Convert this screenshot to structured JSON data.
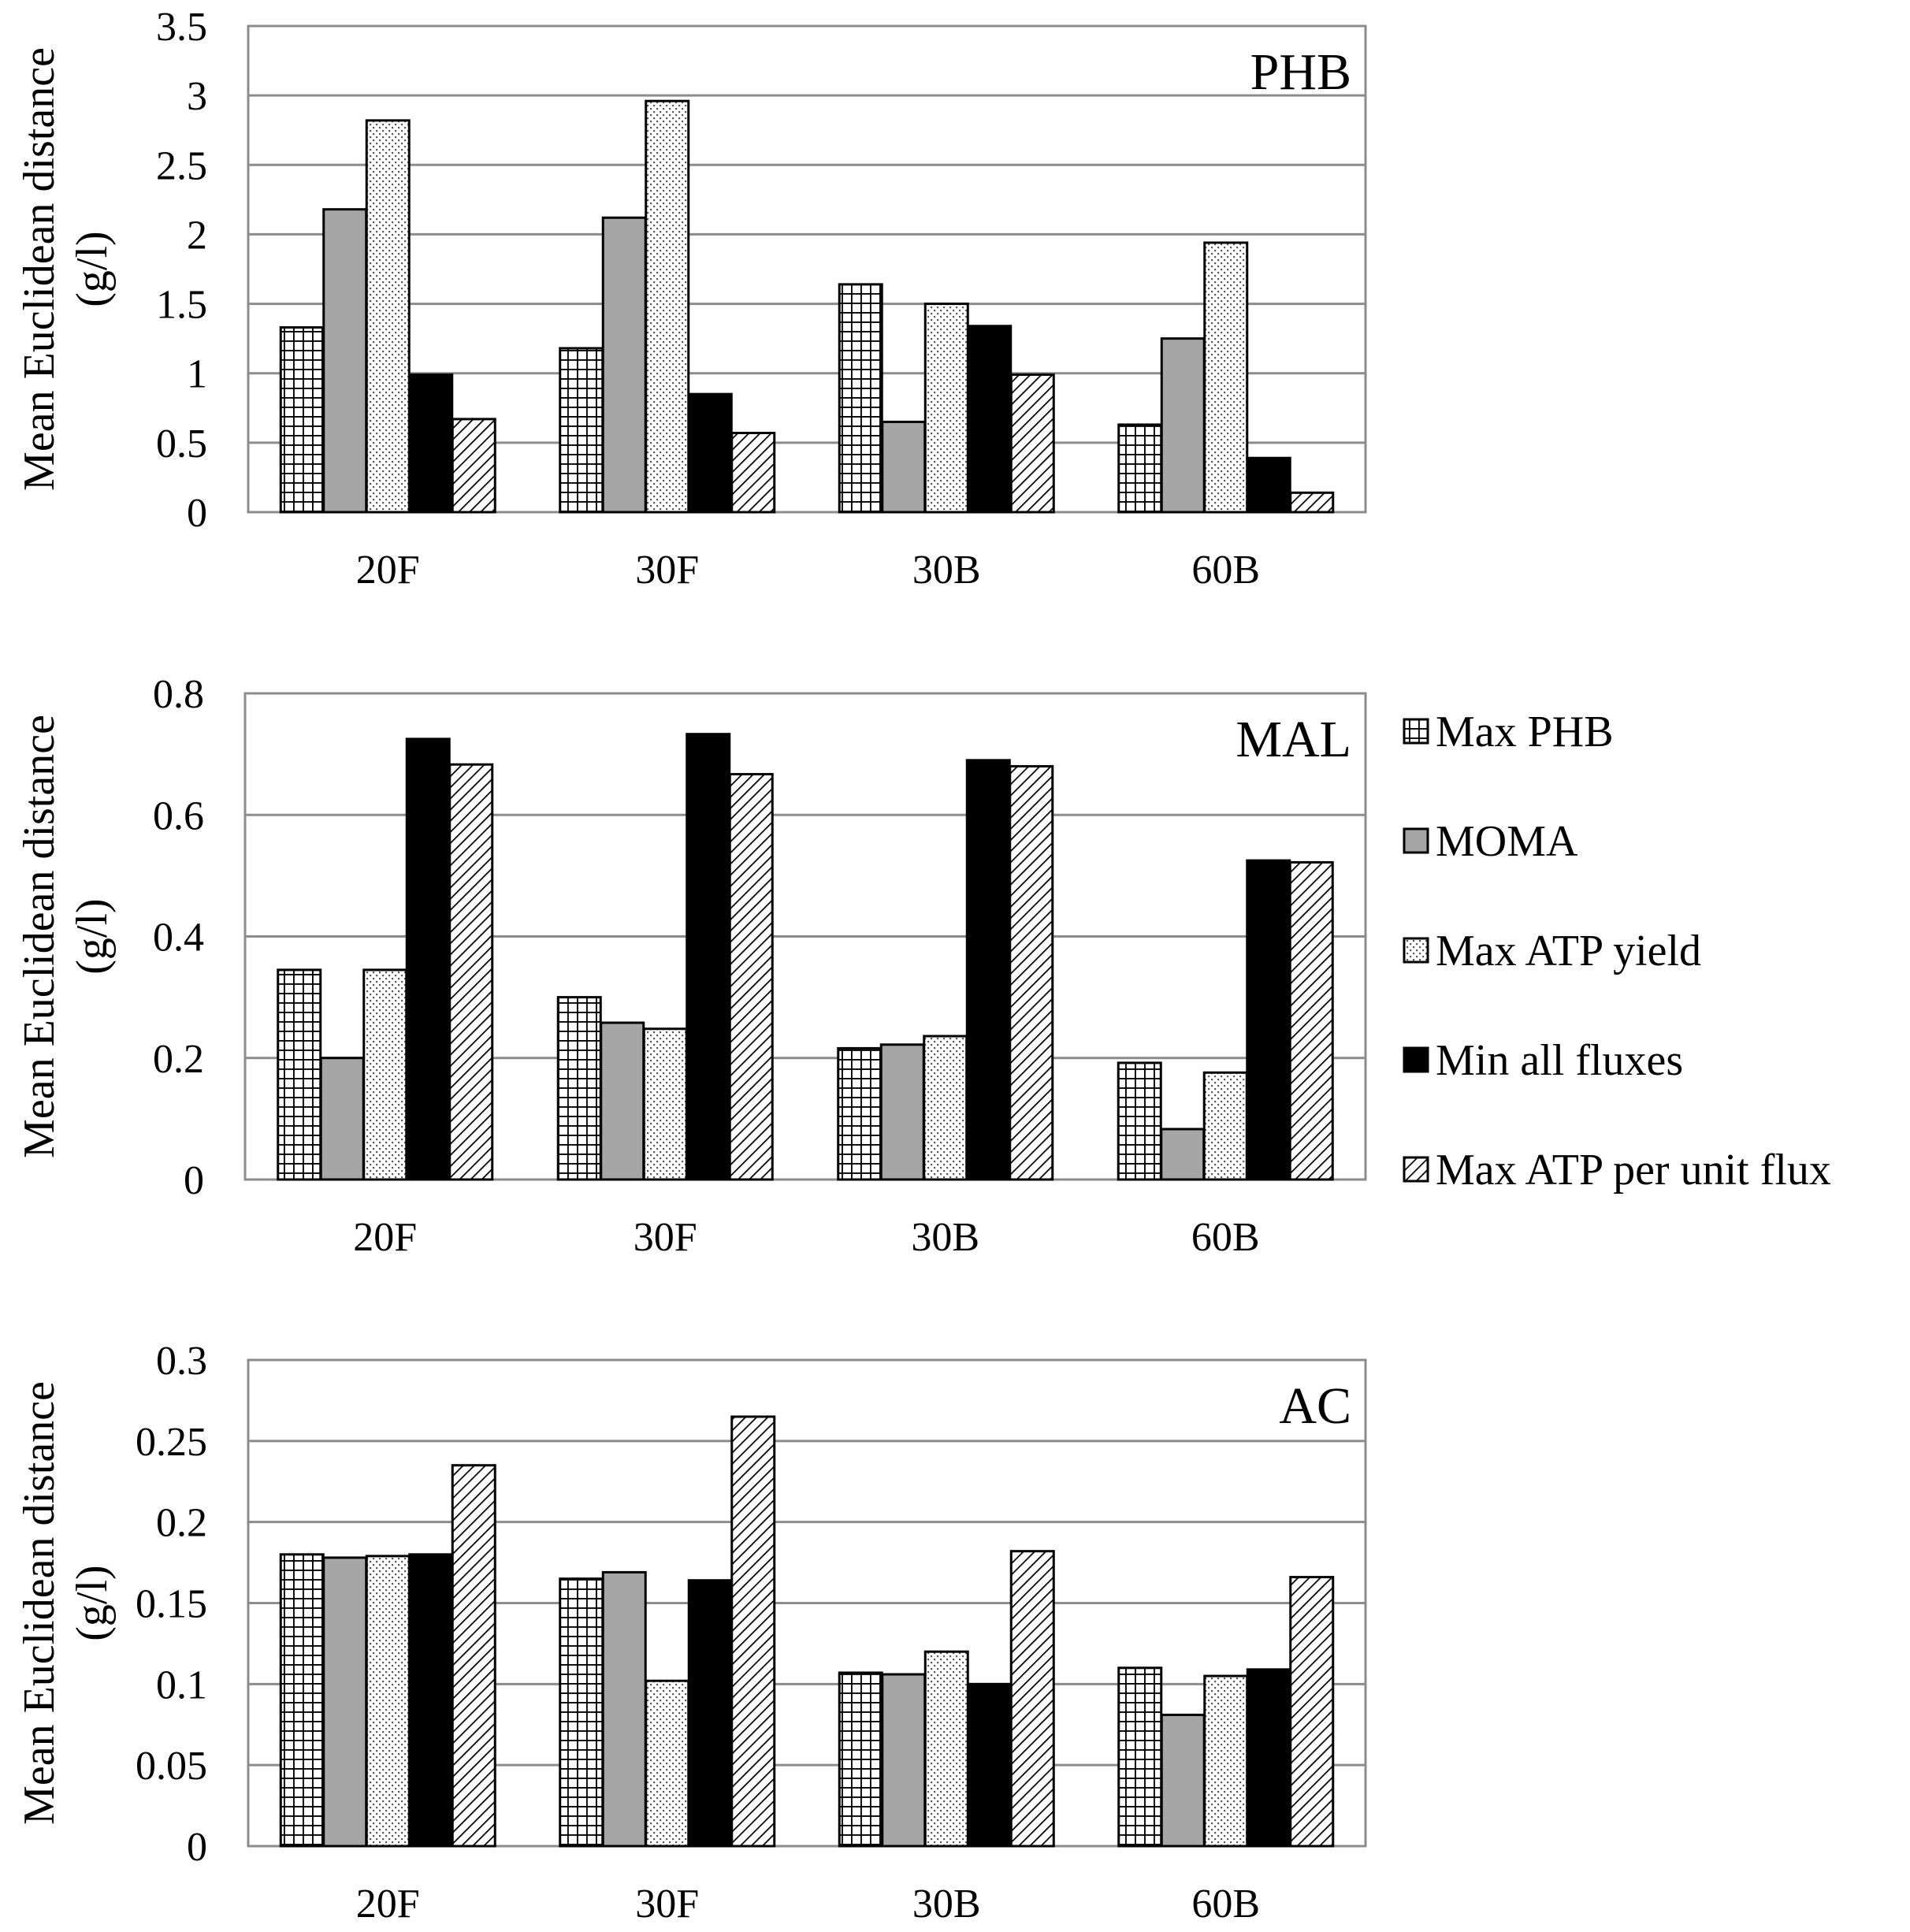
{
  "chart_data": [
    {
      "type": "bar",
      "panel_label": "PHB",
      "ylabel_line1": "Mean Euclidean distance",
      "ylabel_line2": "(g/l)",
      "categories": [
        "20F",
        "30F",
        "30B",
        "60B"
      ],
      "ylim": [
        0,
        3.5
      ],
      "yticks": [
        "0",
        "0.5",
        "1",
        "1.5",
        "2",
        "2.5",
        "3",
        "3.5"
      ],
      "grid": true,
      "series": [
        {
          "name": "Max PHB",
          "values": [
            1.33,
            1.18,
            1.64,
            0.63
          ]
        },
        {
          "name": "MOMA",
          "values": [
            2.18,
            2.12,
            0.65,
            1.25
          ]
        },
        {
          "name": "Max ATP yield",
          "values": [
            2.82,
            2.96,
            1.5,
            1.94
          ]
        },
        {
          "name": "Min all fluxes",
          "values": [
            0.99,
            0.85,
            1.34,
            0.39
          ]
        },
        {
          "name": "Max ATP per unit flux",
          "values": [
            0.67,
            0.57,
            0.99,
            0.14
          ]
        }
      ]
    },
    {
      "type": "bar",
      "panel_label": "MAL",
      "ylabel_line1": "Mean Euclidean distance",
      "ylabel_line2": "(g/l)",
      "categories": [
        "20F",
        "30F",
        "30B",
        "60B"
      ],
      "ylim": [
        0,
        0.8
      ],
      "yticks": [
        "0",
        "0.2",
        "0.4",
        "0.6",
        "0.8"
      ],
      "grid": true,
      "series": [
        {
          "name": "Max PHB",
          "values": [
            0.345,
            0.3,
            0.216,
            0.192
          ]
        },
        {
          "name": "MOMA",
          "values": [
            0.2,
            0.258,
            0.222,
            0.083
          ]
        },
        {
          "name": "Max ATP yield",
          "values": [
            0.345,
            0.248,
            0.236,
            0.176
          ]
        },
        {
          "name": "Min all fluxes",
          "values": [
            0.725,
            0.733,
            0.69,
            0.525
          ]
        },
        {
          "name": "Max ATP per unit flux",
          "values": [
            0.683,
            0.667,
            0.68,
            0.522
          ]
        }
      ]
    },
    {
      "type": "bar",
      "panel_label": "AC",
      "ylabel_line1": "Mean Euclidean distance",
      "ylabel_line2": "(g/l)",
      "categories": [
        "20F",
        "30F",
        "30B",
        "60B"
      ],
      "ylim": [
        0,
        0.3
      ],
      "yticks": [
        "0",
        "0.05",
        "0.1",
        "0.15",
        "0.2",
        "0.25",
        "0.3"
      ],
      "grid": true,
      "series": [
        {
          "name": "Max PHB",
          "values": [
            0.18,
            0.165,
            0.107,
            0.11
          ]
        },
        {
          "name": "MOMA",
          "values": [
            0.178,
            0.169,
            0.106,
            0.081
          ]
        },
        {
          "name": "Max ATP yield",
          "values": [
            0.179,
            0.102,
            0.12,
            0.105
          ]
        },
        {
          "name": "Min all fluxes",
          "values": [
            0.18,
            0.164,
            0.1,
            0.109
          ]
        },
        {
          "name": "Max ATP per unit flux",
          "values": [
            0.235,
            0.265,
            0.182,
            0.166
          ]
        }
      ]
    }
  ],
  "legend": {
    "position": "right",
    "items": [
      {
        "label": "Max PHB",
        "pattern": "grid"
      },
      {
        "label": "MOMA",
        "pattern": "gray"
      },
      {
        "label": "Max ATP yield",
        "pattern": "dots"
      },
      {
        "label": "Min all fluxes",
        "pattern": "black"
      },
      {
        "label": "Max ATP per unit flux",
        "pattern": "hatch"
      }
    ]
  },
  "colors": {
    "gridline": "#8c8c8c",
    "axis": "#8c8c8c",
    "bar_outline": "#000000",
    "moma_fill": "#a6a6a6",
    "black_fill": "#000000"
  }
}
